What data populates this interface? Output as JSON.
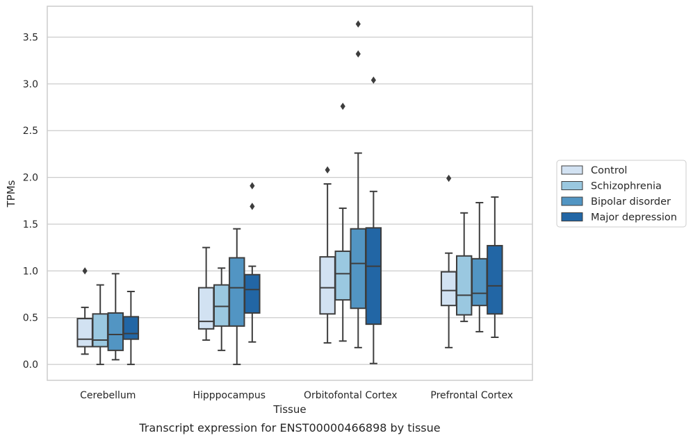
{
  "chart_data": {
    "type": "box",
    "xlabel": "Tissue",
    "ylabel": "TPMs",
    "caption": "Transcript expression for ENST00000466898 by tissue",
    "ylim": [
      -0.17,
      3.83
    ],
    "yticks": [
      0.0,
      0.5,
      1.0,
      1.5,
      2.0,
      2.5,
      3.0,
      3.5
    ],
    "ytick_labels": [
      "0.0",
      "0.5",
      "1.0",
      "1.5",
      "2.0",
      "2.5",
      "3.0",
      "3.5"
    ],
    "grid": "horizontal",
    "legend_position": "right",
    "categories": [
      "Cerebellum",
      "Hipppocampus",
      "Orbitofontal Cortex",
      "Prefrontal Cortex"
    ],
    "series": [
      {
        "name": "Control",
        "color": "#d2e2f2",
        "boxes": [
          {
            "whisker_low": 0.11,
            "q1": 0.19,
            "median": 0.27,
            "q3": 0.49,
            "whisker_high": 0.61,
            "outliers": [
              1.0
            ]
          },
          {
            "whisker_low": 0.26,
            "q1": 0.38,
            "median": 0.46,
            "q3": 0.82,
            "whisker_high": 1.25,
            "outliers": []
          },
          {
            "whisker_low": 0.23,
            "q1": 0.54,
            "median": 0.82,
            "q3": 1.15,
            "whisker_high": 1.93,
            "outliers": [
              2.08
            ]
          },
          {
            "whisker_low": 0.18,
            "q1": 0.63,
            "median": 0.79,
            "q3": 0.99,
            "whisker_high": 1.19,
            "outliers": [
              1.99
            ]
          }
        ]
      },
      {
        "name": "Schizophrenia",
        "color": "#9ac8e0",
        "boxes": [
          {
            "whisker_low": 0.0,
            "q1": 0.19,
            "median": 0.26,
            "q3": 0.54,
            "whisker_high": 0.85,
            "outliers": []
          },
          {
            "whisker_low": 0.15,
            "q1": 0.41,
            "median": 0.62,
            "q3": 0.85,
            "whisker_high": 1.03,
            "outliers": []
          },
          {
            "whisker_low": 0.25,
            "q1": 0.69,
            "median": 0.97,
            "q3": 1.21,
            "whisker_high": 1.67,
            "outliers": [
              2.76
            ]
          },
          {
            "whisker_low": 0.46,
            "q1": 0.53,
            "median": 0.74,
            "q3": 1.16,
            "whisker_high": 1.62,
            "outliers": []
          }
        ]
      },
      {
        "name": "Bipolar disorder",
        "color": "#5295c3",
        "boxes": [
          {
            "whisker_low": 0.05,
            "q1": 0.15,
            "median": 0.32,
            "q3": 0.55,
            "whisker_high": 0.97,
            "outliers": []
          },
          {
            "whisker_low": 0.0,
            "q1": 0.41,
            "median": 0.82,
            "q3": 1.14,
            "whisker_high": 1.45,
            "outliers": []
          },
          {
            "whisker_low": 0.18,
            "q1": 0.6,
            "median": 1.08,
            "q3": 1.45,
            "whisker_high": 2.26,
            "outliers": [
              3.32,
              3.64
            ]
          },
          {
            "whisker_low": 0.35,
            "q1": 0.63,
            "median": 0.76,
            "q3": 1.13,
            "whisker_high": 1.73,
            "outliers": []
          }
        ]
      },
      {
        "name": "Major depression",
        "color": "#2266a5",
        "boxes": [
          {
            "whisker_low": 0.0,
            "q1": 0.27,
            "median": 0.33,
            "q3": 0.51,
            "whisker_high": 0.78,
            "outliers": []
          },
          {
            "whisker_low": 0.24,
            "q1": 0.55,
            "median": 0.8,
            "q3": 0.96,
            "whisker_high": 1.05,
            "outliers": [
              1.69,
              1.91
            ]
          },
          {
            "whisker_low": 0.01,
            "q1": 0.43,
            "median": 1.05,
            "q3": 1.46,
            "whisker_high": 1.85,
            "outliers": [
              3.04
            ]
          },
          {
            "whisker_low": 0.29,
            "q1": 0.54,
            "median": 0.84,
            "q3": 1.27,
            "whisker_high": 1.79,
            "outliers": []
          }
        ]
      }
    ]
  }
}
